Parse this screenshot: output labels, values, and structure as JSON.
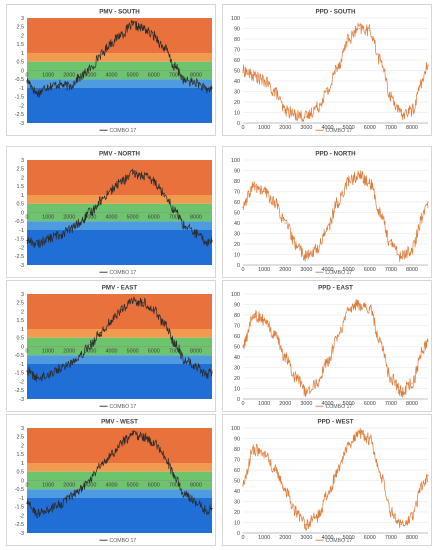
{
  "chart_data": [
    {
      "type": "line",
      "title": "PMV - SOUTH",
      "legend": "COMBO 17",
      "legend_position": "bottom",
      "line_color": "#2b2b2b",
      "ylim": [
        -3,
        3
      ],
      "yticks": [
        3,
        2.5,
        2,
        1.5,
        1,
        0.5,
        0,
        -0.5,
        -1,
        -1.5,
        -2,
        -2.5,
        -3
      ],
      "xlim": [
        0,
        8760
      ],
      "xticks": [
        0,
        1000,
        2000,
        3000,
        4000,
        5000,
        6000,
        7000,
        8000
      ],
      "bands": [
        {
          "from": 1,
          "to": 3,
          "color": "#e8713c"
        },
        {
          "from": 0.5,
          "to": 1,
          "color": "#f29a50"
        },
        {
          "from": -0.5,
          "to": 0.5,
          "color": "#6cc46c"
        },
        {
          "from": -1,
          "to": -0.5,
          "color": "#4f9be0"
        },
        {
          "from": -3,
          "to": -1,
          "color": "#1f6fd6"
        }
      ],
      "x": [
        0,
        500,
        1000,
        1500,
        2000,
        2500,
        3000,
        3500,
        4000,
        4500,
        5000,
        5500,
        6000,
        6500,
        7000,
        7500,
        8000,
        8500,
        8760
      ],
      "values": [
        -0.6,
        -1.3,
        -0.9,
        -0.8,
        -0.9,
        -0.4,
        0.1,
        0.9,
        1.6,
        2.1,
        2.6,
        2.4,
        2.0,
        1.3,
        0.2,
        -0.6,
        -0.7,
        -1.1,
        -1.0
      ]
    },
    {
      "type": "line",
      "title": "PPD - SOUTH",
      "legend": "COMBO 17",
      "legend_position": "bottom",
      "line_color": "#e07b39",
      "ylim": [
        0,
        100
      ],
      "yticks": [
        100,
        90,
        80,
        70,
        60,
        50,
        40,
        30,
        20,
        10,
        0
      ],
      "xlim": [
        0,
        8760
      ],
      "xticks": [
        0,
        1000,
        2000,
        3000,
        4000,
        5000,
        6000,
        7000,
        8000
      ],
      "x": [
        0,
        500,
        1000,
        1500,
        2000,
        2500,
        3000,
        3500,
        4000,
        4500,
        5000,
        5500,
        6000,
        6500,
        7000,
        7500,
        8000,
        8500,
        8760
      ],
      "values": [
        50,
        45,
        40,
        30,
        12,
        8,
        6,
        15,
        30,
        55,
        80,
        90,
        88,
        60,
        25,
        8,
        12,
        40,
        55
      ]
    },
    {
      "type": "line",
      "title": "PMV - NORTH",
      "legend": "COMBO 17",
      "legend_position": "bottom",
      "line_color": "#2b2b2b",
      "ylim": [
        -3,
        3
      ],
      "yticks": [
        3,
        2.5,
        2,
        1.5,
        1,
        0.5,
        0,
        -0.5,
        -1,
        -1.5,
        -2,
        -2.5,
        -3
      ],
      "xlim": [
        0,
        8760
      ],
      "xticks": [
        0,
        1000,
        2000,
        3000,
        4000,
        5000,
        6000,
        7000,
        8000
      ],
      "bands": [
        {
          "from": 1,
          "to": 3,
          "color": "#e8713c"
        },
        {
          "from": 0.5,
          "to": 1,
          "color": "#f29a50"
        },
        {
          "from": -0.5,
          "to": 0.5,
          "color": "#6cc46c"
        },
        {
          "from": -1,
          "to": -0.5,
          "color": "#4f9be0"
        },
        {
          "from": -3,
          "to": -1,
          "color": "#1f6fd6"
        }
      ],
      "x": [
        0,
        500,
        1000,
        1500,
        2000,
        2500,
        3000,
        3500,
        4000,
        4500,
        5000,
        5500,
        6000,
        6500,
        7000,
        7500,
        8000,
        8500,
        8760
      ],
      "values": [
        -1.6,
        -1.8,
        -1.5,
        -1.3,
        -1.0,
        -0.6,
        0.0,
        0.7,
        1.3,
        1.8,
        2.2,
        2.1,
        1.8,
        1.1,
        0.1,
        -0.8,
        -1.2,
        -1.7,
        -1.6
      ]
    },
    {
      "type": "line",
      "title": "PPD - NORTH",
      "legend": "COMBO 17",
      "legend_position": "bottom",
      "line_color": "#e07b39",
      "ylim": [
        0,
        100
      ],
      "yticks": [
        100,
        90,
        80,
        70,
        60,
        50,
        40,
        30,
        20,
        10,
        0
      ],
      "xlim": [
        0,
        8760
      ],
      "xticks": [
        0,
        1000,
        2000,
        3000,
        4000,
        5000,
        6000,
        7000,
        8000
      ],
      "x": [
        0,
        500,
        1000,
        1500,
        2000,
        2500,
        3000,
        3500,
        4000,
        4500,
        5000,
        5500,
        6000,
        6500,
        7000,
        7500,
        8000,
        8500,
        8760
      ],
      "values": [
        55,
        75,
        70,
        60,
        40,
        20,
        8,
        15,
        35,
        60,
        80,
        85,
        78,
        50,
        20,
        8,
        15,
        45,
        60
      ]
    },
    {
      "type": "line",
      "title": "PMV - EAST",
      "legend": "COMBO 17",
      "legend_position": "bottom",
      "line_color": "#2b2b2b",
      "ylim": [
        -3,
        3
      ],
      "yticks": [
        3,
        2.5,
        2,
        1.5,
        1,
        0.5,
        0,
        -0.5,
        -1,
        -1.5,
        -2,
        -2.5,
        -3
      ],
      "xlim": [
        0,
        8760
      ],
      "xticks": [
        0,
        1000,
        2000,
        3000,
        4000,
        5000,
        6000,
        7000,
        8000
      ],
      "bands": [
        {
          "from": 1,
          "to": 3,
          "color": "#e8713c"
        },
        {
          "from": 0.5,
          "to": 1,
          "color": "#f29a50"
        },
        {
          "from": -0.5,
          "to": 0.5,
          "color": "#6cc46c"
        },
        {
          "from": -1,
          "to": -0.5,
          "color": "#4f9be0"
        },
        {
          "from": -3,
          "to": -1,
          "color": "#1f6fd6"
        }
      ],
      "x": [
        0,
        500,
        1000,
        1500,
        2000,
        2500,
        3000,
        3500,
        4000,
        4500,
        5000,
        5500,
        6000,
        6500,
        7000,
        7500,
        8000,
        8500,
        8760
      ],
      "values": [
        -1.4,
        -1.8,
        -1.6,
        -1.3,
        -1.0,
        -0.5,
        0.1,
        0.8,
        1.5,
        2.1,
        2.6,
        2.5,
        2.1,
        1.3,
        0.2,
        -0.8,
        -1.1,
        -1.6,
        -1.5
      ]
    },
    {
      "type": "line",
      "title": "PPD - EAST",
      "legend": "COMBO 17",
      "legend_position": "bottom",
      "line_color": "#e07b39",
      "ylim": [
        0,
        100
      ],
      "yticks": [
        100,
        90,
        80,
        70,
        60,
        50,
        40,
        30,
        20,
        10,
        0
      ],
      "xlim": [
        0,
        8760
      ],
      "xticks": [
        0,
        1000,
        2000,
        3000,
        4000,
        5000,
        6000,
        7000,
        8000
      ],
      "x": [
        0,
        500,
        1000,
        1500,
        2000,
        2500,
        3000,
        3500,
        4000,
        4500,
        5000,
        5500,
        6000,
        6500,
        7000,
        7500,
        8000,
        8500,
        8760
      ],
      "values": [
        50,
        80,
        75,
        60,
        40,
        20,
        7,
        15,
        35,
        60,
        85,
        90,
        85,
        55,
        20,
        7,
        15,
        45,
        55
      ]
    },
    {
      "type": "line",
      "title": "PMV - WEST",
      "legend": "COMBO 17",
      "legend_position": "bottom",
      "line_color": "#2b2b2b",
      "ylim": [
        -3,
        3
      ],
      "yticks": [
        3,
        2.5,
        2,
        1.5,
        1,
        0.5,
        0,
        -0.5,
        -1,
        -1.5,
        -2,
        -2.5,
        -3
      ],
      "xlim": [
        0,
        8760
      ],
      "xticks": [
        0,
        1000,
        2000,
        3000,
        4000,
        5000,
        6000,
        7000,
        8000
      ],
      "bands": [
        {
          "from": 1,
          "to": 3,
          "color": "#e8713c"
        },
        {
          "from": 0.5,
          "to": 1,
          "color": "#f29a50"
        },
        {
          "from": -0.5,
          "to": 0.5,
          "color": "#6cc46c"
        },
        {
          "from": -1,
          "to": -0.5,
          "color": "#4f9be0"
        },
        {
          "from": -3,
          "to": -1,
          "color": "#1f6fd6"
        }
      ],
      "x": [
        0,
        500,
        1000,
        1500,
        2000,
        2500,
        3000,
        3500,
        4000,
        4500,
        5000,
        5500,
        6000,
        6500,
        7000,
        7500,
        8000,
        8500,
        8760
      ],
      "values": [
        -1.3,
        -1.9,
        -1.7,
        -1.4,
        -1.0,
        -0.5,
        0.1,
        0.9,
        1.5,
        2.2,
        2.6,
        2.5,
        2.2,
        1.4,
        0.2,
        -0.8,
        -1.2,
        -1.7,
        -1.6
      ]
    },
    {
      "type": "line",
      "title": "PPD - WEST",
      "legend": "COMBO 17",
      "legend_position": "bottom",
      "line_color": "#e07b39",
      "ylim": [
        0,
        100
      ],
      "yticks": [
        100,
        90,
        80,
        70,
        60,
        50,
        40,
        30,
        20,
        10,
        0
      ],
      "xlim": [
        0,
        8760
      ],
      "xticks": [
        0,
        1000,
        2000,
        3000,
        4000,
        5000,
        6000,
        7000,
        8000
      ],
      "x": [
        0,
        500,
        1000,
        1500,
        2000,
        2500,
        3000,
        3500,
        4000,
        4500,
        5000,
        5500,
        6000,
        6500,
        7000,
        7500,
        8000,
        8500,
        8760
      ],
      "values": [
        45,
        80,
        75,
        60,
        40,
        20,
        8,
        15,
        35,
        60,
        85,
        95,
        90,
        55,
        20,
        8,
        15,
        45,
        55
      ]
    }
  ]
}
